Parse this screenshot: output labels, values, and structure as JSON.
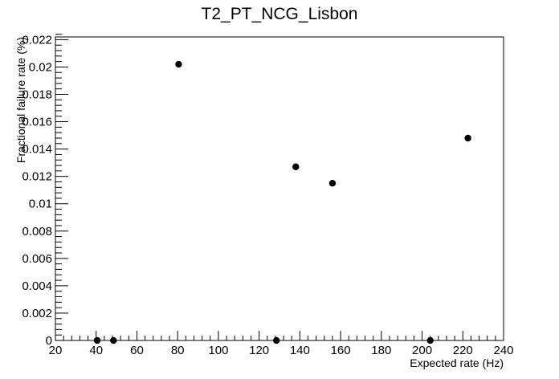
{
  "chart_data": {
    "type": "scatter",
    "title": "T2_PT_NCG_Lisbon",
    "xlabel": "Expected rate (Hz)",
    "ylabel": "Fractional failure rate (%)",
    "xlim": [
      20,
      240
    ],
    "ylim": [
      0,
      0.0222
    ],
    "grid": false,
    "x_ticks": [
      20,
      40,
      60,
      80,
      100,
      120,
      140,
      160,
      180,
      200,
      220,
      240
    ],
    "x_tick_labels": [
      "20",
      "40",
      "60",
      "80",
      "100",
      "120",
      "140",
      "160",
      "180",
      "200",
      "220",
      "240"
    ],
    "y_ticks": [
      0,
      0.002,
      0.004,
      0.006,
      0.008,
      0.01,
      0.012,
      0.014,
      0.016,
      0.018,
      0.02,
      0.022
    ],
    "y_tick_labels": [
      "0",
      "0.002",
      "0.004",
      "0.006",
      "0.008",
      "0.01",
      "0.012",
      "0.014",
      "0.016",
      "0.018",
      "0.02",
      "0.022"
    ],
    "marker_color": "#000000",
    "points": [
      {
        "x": 40.5,
        "y": 0
      },
      {
        "x": 48.5,
        "y": 0
      },
      {
        "x": 80.5,
        "y": 0.0202
      },
      {
        "x": 128.5,
        "y": 0
      },
      {
        "x": 138,
        "y": 0.0127
      },
      {
        "x": 156,
        "y": 0.0115
      },
      {
        "x": 204,
        "y": 0
      },
      {
        "x": 222.5,
        "y": 0.0148
      }
    ]
  }
}
